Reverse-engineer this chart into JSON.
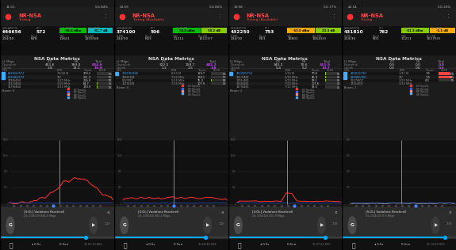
{
  "bg_color": "#1a1a1a",
  "panels": [
    {
      "status_bar": "11:01",
      "status_bar_right": "5G 84%",
      "title": "NR-NSA",
      "subtitle": "Testing",
      "title_color": "#ff4444",
      "ssb_arfcn": "646656",
      "pci": "572",
      "ss_rsrp": "-36.8 dBm",
      "ss_rsrp_color": "#00bb00",
      "ss_sinr": "-31.7 dB",
      "ss_sinr_color": "#00bbbb",
      "plmn": "234/30",
      "band": "N78",
      "tac": "11661",
      "ecgi": "12059/8",
      "metrics_title": "NSA Data Metrics",
      "dl_lte": "451.6",
      "dl_nr": "393.0",
      "dl_total": "844.6",
      "dl_total_color": "#cc44ff",
      "ul_lte": "2.8",
      "ul_nr": "13.1",
      "ul_total": "15.9",
      "ul_total_color": "#cc44ff",
      "cells": [
        {
          "id": "646656/572",
          "bw": "78/40 M",
          "thput": "209.2",
          "bler": "1",
          "color": "#44aaff",
          "marker": true
        },
        {
          "id": "636384/572",
          "bw": "78/",
          "thput": "211.3",
          "bler": "0",
          "color": "#44aaff",
          "marker": true
        },
        {
          "id": "3350/494",
          "bw": "3/20 MHz",
          "thput": "216.0",
          "bler": "0",
          "color": "#aaaaaa",
          "marker": false
        },
        {
          "id": "1617/494",
          "bw": "3/20 MHz",
          "thput": "64.7",
          "bler": "2",
          "color": "#aaaaaa",
          "marker": false
        },
        {
          "id": "3579/494",
          "bw": "3/15 MHz",
          "thput": "170.9",
          "bler": "2",
          "color": "#aaaaaa",
          "marker": false
        }
      ],
      "beam": "Beam: 0",
      "graph_peak": 1400,
      "graph_color": "#ff3333",
      "time": "11:01:33.866",
      "graph_shape": "hump"
    },
    {
      "status_bar": "10:59",
      "status_bar_right": "5G 80%",
      "title": "NR-NSA",
      "subtitle": "Testing (Available)",
      "title_color": "#ff4444",
      "ssb_arfcn": "374190",
      "pci": "506",
      "ss_rsrp": "70.0 dBm",
      "ss_rsrp_color": "#00bb00",
      "ss_sinr": "30.2 dB",
      "ss_sinr_color": "#88cc00",
      "plmn": "234/30",
      "band": "N03",
      "tac": "11211",
      "ecgi": "10123/7",
      "metrics_title": "NSA Data Metrics",
      "dl_lte": "322.5",
      "dl_nr": "159.7",
      "dl_total": "482.2",
      "dl_total_color": "#cc44ff",
      "ul_lte": "1.2",
      "ul_nr": "2.5",
      "ul_total": "3.8",
      "ul_total_color": "#cc44ff",
      "cells": [
        {
          "id": "374190/506",
          "bw": "8/10 M",
          "thput": "159.7",
          "bler": "1",
          "color": "#44aaff",
          "marker": true
        },
        {
          "id": "3350/181",
          "bw": "7/20 MHz",
          "thput": "139.1",
          "bler": "1",
          "color": "#aaaaaa",
          "marker": false
        },
        {
          "id": "522/261",
          "bw": "5/15 MHz",
          "thput": "75.4",
          "bler": "6",
          "color": "#aaaaaa",
          "marker": false
        },
        {
          "id": "3179/181",
          "bw": "7/15 MHz",
          "thput": "107.9",
          "bler": "2",
          "color": "#aaaaaa",
          "marker": false
        }
      ],
      "beam": "Beam: 0",
      "graph_peak": 1600,
      "graph_color": "#ff3333",
      "time": "10:58:48.068",
      "graph_shape": "flat"
    },
    {
      "status_bar": "10:08",
      "status_bar_right": "5G 77%",
      "title": "NR-NSA",
      "subtitle": "Testing (Available)",
      "title_color": "#ff4444",
      "ssb_arfcn": "432250",
      "pci": "753",
      "ss_rsrp": "-63.0 dBm",
      "ss_rsrp_color": "#ffaa00",
      "ss_sinr": "23.3 dB",
      "ss_sinr_color": "#88cc00",
      "plmn": "234/30",
      "band": "N01",
      "tac": "10801",
      "ecgi": "10643/0",
      "metrics_title": "NSA Data Metrics",
      "dl_lte": "345.3",
      "dl_nr": "70.6",
      "dl_total": "415.9",
      "dl_total_color": "#cc44ff",
      "ul_lte": "5.4",
      "ul_nr": "5.2",
      "ul_total": "10.7",
      "ul_total_color": "#cc44ff",
      "cells": [
        {
          "id": "432250/753",
          "bw": "1/15 M",
          "thput": "70.6",
          "bler": "5",
          "color": "#44aaff",
          "marker": true
        },
        {
          "id": "1617/481",
          "bw": "3/20 MHz",
          "thput": "45.9",
          "bler": "6",
          "color": "#aaaaaa",
          "marker": false
        },
        {
          "id": "1851/481",
          "bw": "3/20 MHz",
          "thput": "93.1",
          "bler": "8",
          "color": "#aaaaaa",
          "marker": false
        },
        {
          "id": "3350/481",
          "bw": "7/20 MHz",
          "thput": "107.6",
          "bler": "4",
          "color": "#aaaaaa",
          "marker": false
        },
        {
          "id": "3179/481",
          "bw": "7/15 MHz",
          "thput": "58.5",
          "bler": "4",
          "color": "#aaaaaa",
          "marker": false
        }
      ],
      "beam": "Beam: 2",
      "graph_peak": 1600,
      "graph_color": "#ff3333",
      "time": "10:07:22.000",
      "graph_shape": "spike"
    },
    {
      "status_bar": "22:14",
      "status_bar_right": "5G 20%",
      "title": "NR-NSA",
      "subtitle": "Testing",
      "title_color": "#ff4444",
      "ssb_arfcn": "431810",
      "pci": "762",
      "ss_rsrp": "-51.3 dBm",
      "ss_rsrp_color": "#88cc00",
      "ss_sinr": "-1.1 dB",
      "ss_sinr_color": "#ffaa00",
      "plmn": "234/30",
      "band": "N01",
      "tac": "11211",
      "ecgi": "10176/0",
      "metrics_title": "NSA Data Metrics",
      "dl_lte": "0.0",
      "dl_nr": "0.0",
      "dl_total": "0.0",
      "dl_total_color": "#cc44ff",
      "ul_lte": "0.0",
      "ul_nr": "0.6",
      "ul_total": "0.6",
      "ul_total_color": "#cc44ff",
      "cells": [
        {
          "id": "431810/762",
          "bw": "1/11 M",
          "thput": "1.9",
          "bler": "75",
          "color": "#44aaff",
          "marker": true
        },
        {
          "id": "436960/901",
          "bw": "78/",
          "thput": "1.9",
          "bler": "87",
          "color": "#44aaff",
          "marker": true
        },
        {
          "id": "1617/407",
          "bw": "3/20 MHz",
          "thput": "0.0",
          "bler": "0",
          "color": "#aaaaaa",
          "marker": false
        },
        {
          "id": "1751/407",
          "bw": "3/15 MHz",
          "thput": "",
          "bler": "",
          "color": "#aaaaaa",
          "marker": false
        }
      ],
      "beam": "Beam: 1",
      "graph_peak": 800,
      "graph_color": "#888888",
      "time": "22:12:50.000",
      "graph_shape": "low"
    }
  ]
}
